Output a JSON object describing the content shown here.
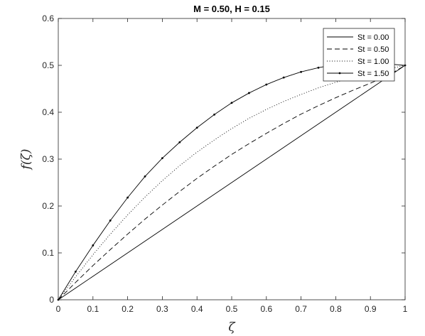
{
  "chart_data": {
    "type": "line",
    "title": "M = 0.50, H = 0.15",
    "xlabel": "ζ",
    "ylabel": "f(ζ)",
    "xlim": [
      0,
      1
    ],
    "ylim": [
      0,
      0.6
    ],
    "xticks": [
      0,
      0.1,
      0.2,
      0.3,
      0.4,
      0.5,
      0.6,
      0.7,
      0.8,
      0.9,
      1
    ],
    "xtick_labels": [
      "0",
      "0.1",
      "0.2",
      "0.3",
      "0.4",
      "0.5",
      "0.6",
      "0.7",
      "0.8",
      "0.9",
      "1"
    ],
    "yticks": [
      0,
      0.1,
      0.2,
      0.3,
      0.4,
      0.5,
      0.6
    ],
    "ytick_labels": [
      "0",
      "0.1",
      "0.2",
      "0.3",
      "0.4",
      "0.5",
      "0.6"
    ],
    "grid": false,
    "legend_position": "top-right",
    "x": [
      0,
      0.05,
      0.1,
      0.15,
      0.2,
      0.25,
      0.3,
      0.35,
      0.4,
      0.45,
      0.5,
      0.55,
      0.6,
      0.65,
      0.7,
      0.75,
      0.8,
      0.85,
      0.9,
      0.95,
      1
    ],
    "series": [
      {
        "name": "St = 0.00",
        "style": "solid",
        "values": [
          0,
          0.025,
          0.05,
          0.075,
          0.1,
          0.125,
          0.15,
          0.175,
          0.2,
          0.225,
          0.25,
          0.275,
          0.3,
          0.325,
          0.35,
          0.375,
          0.4,
          0.425,
          0.45,
          0.475,
          0.5
        ]
      },
      {
        "name": "St = 0.50",
        "style": "dashed",
        "values": [
          0,
          0.037,
          0.073,
          0.107,
          0.14,
          0.172,
          0.202,
          0.231,
          0.259,
          0.285,
          0.31,
          0.333,
          0.355,
          0.376,
          0.396,
          0.414,
          0.431,
          0.447,
          0.462,
          0.478,
          0.5
        ]
      },
      {
        "name": "St = 1.00",
        "style": "dotted",
        "values": [
          0,
          0.049,
          0.096,
          0.14,
          0.181,
          0.219,
          0.254,
          0.286,
          0.315,
          0.341,
          0.365,
          0.387,
          0.406,
          0.423,
          0.438,
          0.452,
          0.464,
          0.474,
          0.483,
          0.492,
          0.5
        ]
      },
      {
        "name": "St = 1.50",
        "style": "solid-marker",
        "values": [
          0,
          0.06,
          0.116,
          0.169,
          0.218,
          0.263,
          0.302,
          0.336,
          0.367,
          0.395,
          0.42,
          0.441,
          0.459,
          0.474,
          0.486,
          0.495,
          0.502,
          0.506,
          0.506,
          0.503,
          0.5
        ]
      }
    ]
  }
}
